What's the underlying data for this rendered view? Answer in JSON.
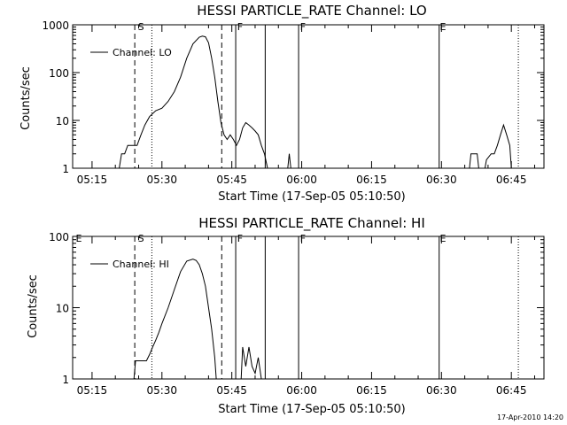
{
  "stamp": "17-Apr-2010 14:20",
  "chart_data": [
    {
      "type": "line",
      "title": "HESSI PARTICLE_RATE Channel: LO",
      "xlabel": "Start Time (17-Sep-05 05:10:50)",
      "ylabel": "Counts/sec",
      "yscale": "log",
      "xlim": [
        "05:10:50",
        "06:52:00"
      ],
      "ylim": [
        1,
        1000
      ],
      "x_ticks": [
        "05:15",
        "05:30",
        "05:45",
        "06:00",
        "06:15",
        "06:30",
        "06:45"
      ],
      "y_ticks": [
        "1",
        "10",
        "100",
        "1000"
      ],
      "legend": {
        "position": "top-left",
        "entries": [
          "Channel: LO"
        ]
      },
      "markers": [
        {
          "label": "S",
          "time": "05:24:50"
        },
        {
          "label": "F",
          "time": "05:46:10"
        },
        {
          "label": "F",
          "time": "05:59:40"
        },
        {
          "label": "E",
          "time": "06:29:40"
        }
      ],
      "dashed_lines": [
        "05:24:10",
        "05:42:50"
      ],
      "dotted_lines": [
        "05:27:50",
        "06:46:30"
      ],
      "solid_lines": [
        "05:45:50",
        "05:52:10",
        "05:59:20",
        "06:29:30"
      ],
      "series": [
        {
          "values": [
            [
              "05:20:50",
              1
            ],
            [
              "05:21:20",
              2
            ],
            [
              "05:22:00",
              2
            ],
            [
              "05:22:40",
              3
            ],
            [
              "05:24:00",
              3
            ],
            [
              "05:24:40",
              3
            ],
            [
              "05:25:30",
              5
            ],
            [
              "05:26:20",
              8
            ],
            [
              "05:27:20",
              12
            ],
            [
              "05:28:40",
              16
            ],
            [
              "05:30:00",
              18
            ],
            [
              "05:31:20",
              25
            ],
            [
              "05:32:40",
              40
            ],
            [
              "05:34:00",
              80
            ],
            [
              "05:35:20",
              200
            ],
            [
              "05:36:40",
              400
            ],
            [
              "05:38:00",
              550
            ],
            [
              "05:38:40",
              580
            ],
            [
              "05:39:20",
              560
            ],
            [
              "05:40:00",
              420
            ],
            [
              "05:40:40",
              200
            ],
            [
              "05:41:20",
              80
            ],
            [
              "05:42:00",
              25
            ],
            [
              "05:42:40",
              9
            ],
            [
              "05:43:20",
              5
            ],
            [
              "05:44:00",
              4
            ],
            [
              "05:44:40",
              5
            ],
            [
              "05:45:20",
              4
            ],
            [
              "05:46:00",
              3
            ],
            [
              "05:46:40",
              4
            ],
            [
              "05:47:20",
              7
            ],
            [
              "05:48:00",
              9
            ],
            [
              "05:48:40",
              8
            ],
            [
              "05:49:20",
              7
            ],
            [
              "05:50:00",
              6
            ],
            [
              "05:50:40",
              5
            ],
            [
              "05:51:20",
              3
            ],
            [
              "05:52:00",
              2
            ],
            [
              "05:52:40",
              1
            ]
          ]
        },
        {
          "values": [
            [
              "05:57:00",
              1
            ],
            [
              "05:57:20",
              2
            ],
            [
              "05:57:40",
              1
            ]
          ]
        },
        {
          "values": [
            [
              "06:36:00",
              1
            ],
            [
              "06:36:20",
              2
            ],
            [
              "06:37:40",
              2
            ],
            [
              "06:38:00",
              1
            ],
            [
              "06:39:20",
              1
            ],
            [
              "06:39:40",
              1.5
            ],
            [
              "06:40:40",
              2
            ],
            [
              "06:41:20",
              2
            ],
            [
              "06:42:00",
              3
            ],
            [
              "06:42:40",
              5
            ],
            [
              "06:43:20",
              8
            ],
            [
              "06:44:00",
              5
            ],
            [
              "06:44:40",
              3
            ],
            [
              "06:45:00",
              1
            ]
          ]
        }
      ]
    },
    {
      "type": "line",
      "title": "HESSI PARTICLE_RATE Channel: HI",
      "xlabel": "Start Time (17-Sep-05 05:10:50)",
      "ylabel": "Counts/sec",
      "yscale": "log",
      "xlim": [
        "05:10:50",
        "06:52:00"
      ],
      "ylim": [
        1,
        100
      ],
      "x_ticks": [
        "05:15",
        "05:30",
        "05:45",
        "06:00",
        "06:15",
        "06:30",
        "06:45"
      ],
      "y_ticks": [
        "1",
        "10",
        "100"
      ],
      "legend": {
        "position": "top-left",
        "entries": [
          "Channel: HI"
        ]
      },
      "markers": [
        {
          "label": "E",
          "time": "05:11:30"
        },
        {
          "label": "S",
          "time": "05:24:50"
        },
        {
          "label": "F",
          "time": "05:46:10"
        },
        {
          "label": "F",
          "time": "05:59:40"
        },
        {
          "label": "E",
          "time": "06:29:40"
        }
      ],
      "dashed_lines": [
        "05:24:10",
        "05:42:50"
      ],
      "dotted_lines": [
        "05:27:50",
        "06:46:30"
      ],
      "solid_lines": [
        "05:45:50",
        "05:52:10",
        "05:59:20",
        "06:29:30"
      ],
      "series": [
        {
          "values": [
            [
              "05:24:00",
              1
            ],
            [
              "05:24:20",
              1.8
            ],
            [
              "05:26:40",
              1.8
            ],
            [
              "05:27:20",
              2.2
            ],
            [
              "05:28:00",
              2.8
            ],
            [
              "05:28:40",
              3.5
            ],
            [
              "05:29:20",
              4.5
            ],
            [
              "05:30:00",
              6
            ],
            [
              "05:31:20",
              10
            ],
            [
              "05:32:40",
              18
            ],
            [
              "05:34:00",
              32
            ],
            [
              "05:35:20",
              45
            ],
            [
              "05:36:40",
              48
            ],
            [
              "05:37:20",
              46
            ],
            [
              "05:38:00",
              40
            ],
            [
              "05:38:40",
              30
            ],
            [
              "05:39:20",
              20
            ],
            [
              "05:40:00",
              10
            ],
            [
              "05:40:40",
              5
            ],
            [
              "05:41:20",
              2
            ],
            [
              "05:41:40",
              1
            ]
          ]
        },
        {
          "values": [
            [
              "05:47:00",
              1
            ],
            [
              "05:47:20",
              2.8
            ],
            [
              "05:48:00",
              1.5
            ],
            [
              "05:48:40",
              2.8
            ],
            [
              "05:49:20",
              1.5
            ],
            [
              "05:50:00",
              1.2
            ],
            [
              "05:50:40",
              2
            ],
            [
              "05:51:20",
              1
            ]
          ]
        }
      ]
    }
  ]
}
